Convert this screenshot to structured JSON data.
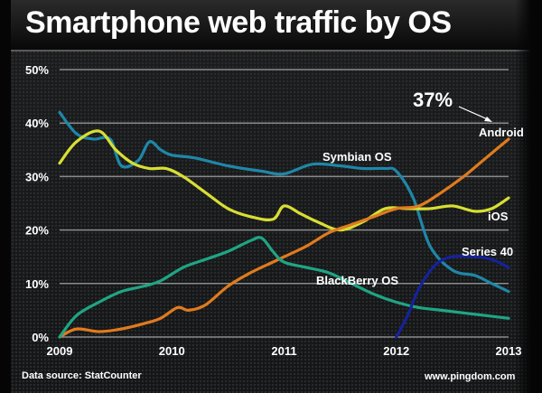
{
  "chart_data": {
    "type": "line",
    "title": "Smartphone web traffic by OS",
    "xlabel": "",
    "ylabel": "",
    "x_ticks": [
      "2009",
      "2010",
      "2011",
      "2012",
      "2013"
    ],
    "y_ticks": [
      "0%",
      "10%",
      "20%",
      "30%",
      "40%",
      "50%"
    ],
    "xlim": [
      2009,
      2013
    ],
    "ylim": [
      0,
      50
    ],
    "grid": true,
    "series": [
      {
        "name": "Symbian OS",
        "color": "#1f87a8",
        "x": [
          2009.0,
          2009.15,
          2009.3,
          2009.45,
          2009.55,
          2009.7,
          2009.8,
          2009.9,
          2010.0,
          2010.2,
          2010.5,
          2010.8,
          2011.0,
          2011.25,
          2011.5,
          2011.7,
          2011.9,
          2012.0,
          2012.15,
          2012.3,
          2012.5,
          2012.7,
          2012.85,
          2013.0
        ],
        "y": [
          42,
          38,
          37,
          37,
          32,
          33,
          36.5,
          35,
          34,
          33.5,
          32,
          31,
          30.5,
          32.3,
          32,
          31.5,
          31.5,
          31,
          26,
          17,
          12.5,
          11.5,
          10,
          8.5
        ]
      },
      {
        "name": "iOS",
        "color": "#d7df33",
        "x": [
          2009.0,
          2009.15,
          2009.35,
          2009.5,
          2009.65,
          2009.8,
          2009.95,
          2010.1,
          2010.3,
          2010.5,
          2010.7,
          2010.9,
          2011.0,
          2011.15,
          2011.3,
          2011.5,
          2011.7,
          2011.9,
          2012.1,
          2012.3,
          2012.5,
          2012.7,
          2012.85,
          2013.0
        ],
        "y": [
          32.5,
          36.5,
          38.5,
          35,
          32.5,
          31.5,
          31.5,
          30,
          27,
          24,
          22.5,
          22,
          24.5,
          23,
          21.5,
          20,
          21.5,
          24,
          24,
          24,
          24.5,
          23.5,
          24,
          26
        ]
      },
      {
        "name": "Android",
        "color": "#e07b1e",
        "x": [
          2009.0,
          2009.15,
          2009.35,
          2009.55,
          2009.75,
          2009.9,
          2010.05,
          2010.15,
          2010.3,
          2010.5,
          2010.7,
          2010.9,
          2011.0,
          2011.2,
          2011.4,
          2011.6,
          2011.8,
          2012.0,
          2012.2,
          2012.4,
          2012.6,
          2012.8,
          2013.0
        ],
        "y": [
          0,
          1.5,
          1,
          1.5,
          2.5,
          3.5,
          5.5,
          5,
          6,
          9.5,
          12,
          14,
          15,
          17,
          19.5,
          21,
          22.5,
          24,
          24.5,
          27,
          30,
          33.5,
          37
        ]
      },
      {
        "name": "BlackBerry OS",
        "color": "#1fa584",
        "x": [
          2009.0,
          2009.15,
          2009.35,
          2009.55,
          2009.75,
          2009.9,
          2010.1,
          2010.3,
          2010.5,
          2010.7,
          2010.8,
          2010.9,
          2011.0,
          2011.2,
          2011.4,
          2011.6,
          2011.8,
          2012.0,
          2012.2,
          2012.4,
          2012.6,
          2012.8,
          2013.0
        ],
        "y": [
          0,
          4,
          6.5,
          8.5,
          9.5,
          10.5,
          13,
          14.5,
          16,
          18,
          18.5,
          16,
          14,
          13,
          12,
          10,
          8,
          6.5,
          5.5,
          5,
          4.5,
          4,
          3.5
        ]
      },
      {
        "name": "Series 40",
        "color": "#16229a",
        "x": [
          2012.0,
          2012.1,
          2012.2,
          2012.35,
          2012.5,
          2012.7,
          2012.85,
          2013.0
        ],
        "y": [
          0,
          4,
          9,
          13.5,
          15,
          15,
          14.5,
          13
        ]
      }
    ],
    "annotations": [
      {
        "text": "37%",
        "target": "Android",
        "x": 2013,
        "y": 37
      }
    ]
  },
  "labels": {
    "symbian": "Symbian OS",
    "ios": "iOS",
    "android": "Android",
    "blackberry": "BlackBerry OS",
    "series40": "Series 40",
    "callout": "37%"
  },
  "footer": {
    "source": "Data source: StatCounter",
    "site": "www.pingdom.com"
  }
}
